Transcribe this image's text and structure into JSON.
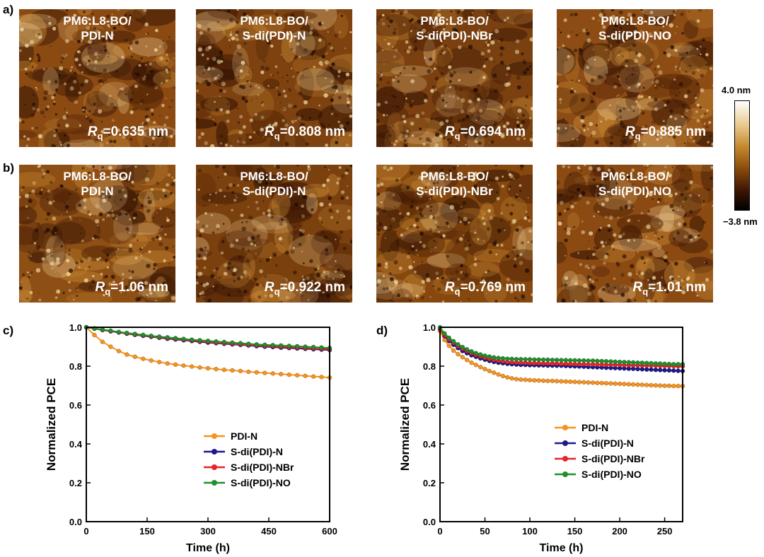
{
  "figure": {
    "row_labels": [
      "a)",
      "b)",
      "c)",
      "d)"
    ],
    "afm_row_a": [
      {
        "line1": "PM6:L8-BO/",
        "line2": "PDI-N",
        "rq_symbol": "R",
        "rq_sub": "q",
        "rq_value": "=0.635 nm",
        "tone": "#8a4a12"
      },
      {
        "line1": "PM6:L8-BO/",
        "line2": "S-di(PDI)-N",
        "rq_symbol": "R",
        "rq_sub": "q",
        "rq_value": "=0.808 nm",
        "tone": "#7d420f"
      },
      {
        "line1": "PM6:L8-BO/",
        "line2": "S-di(PDI)-NBr",
        "rq_symbol": "R",
        "rq_sub": "q",
        "rq_value": "=0.694 nm",
        "tone": "#7a4010"
      },
      {
        "line1": "PM6:L8-BO/",
        "line2": "S-di(PDI)-NO",
        "rq_symbol": "R",
        "rq_sub": "q",
        "rq_value": "=0.885 nm",
        "tone": "#8c4c14"
      }
    ],
    "afm_row_b": [
      {
        "line1": "PM6:L8-BO/",
        "line2": "PDI-N",
        "rq_symbol": "R",
        "rq_sub": "q",
        "rq_value": "=1.06 nm",
        "tone": "#8e4f14"
      },
      {
        "line1": "PM6:L8-BO/",
        "line2": "S-di(PDI)-N",
        "rq_symbol": "R",
        "rq_sub": "q",
        "rq_value": "=0.922 nm",
        "tone": "#7a400e"
      },
      {
        "line1": "PM6:L8-BO/",
        "line2": "S-di(PDI)-NBr",
        "rq_symbol": "R",
        "rq_sub": "q",
        "rq_value": "=0.769 nm",
        "tone": "#86480f"
      },
      {
        "line1": "PM6:L8-BO/",
        "line2": "S-di(PDI)-NO",
        "rq_symbol": "R",
        "rq_sub": "q",
        "rq_value": "=1.01 nm",
        "tone": "#8a4a12"
      }
    ],
    "colorbar": {
      "max_label": "4.0 nm",
      "min_label": "−3.8 nm"
    }
  },
  "chart_data": [
    {
      "id": "c",
      "type": "line",
      "xlabel": "Time (h)",
      "ylabel": "Normalized PCE",
      "xlim": [
        0,
        600
      ],
      "ylim": [
        0,
        1.0
      ],
      "xticks": [
        0,
        150,
        300,
        450,
        600
      ],
      "yticks": [
        0.0,
        0.2,
        0.4,
        0.6,
        0.8,
        1.0
      ],
      "x": [
        0,
        20,
        40,
        60,
        80,
        100,
        120,
        140,
        160,
        180,
        200,
        220,
        240,
        260,
        280,
        300,
        320,
        340,
        360,
        380,
        400,
        420,
        440,
        460,
        480,
        500,
        520,
        540,
        560,
        580,
        600
      ],
      "series": [
        {
          "name": "PDI-N",
          "color": "#f7931e",
          "values": [
            1.0,
            0.96,
            0.925,
            0.9,
            0.878,
            0.86,
            0.848,
            0.838,
            0.829,
            0.821,
            0.814,
            0.808,
            0.803,
            0.798,
            0.793,
            0.789,
            0.785,
            0.781,
            0.778,
            0.775,
            0.771,
            0.768,
            0.765,
            0.762,
            0.759,
            0.756,
            0.753,
            0.75,
            0.747,
            0.744,
            0.741
          ]
        },
        {
          "name": "S-di(PDI)-N",
          "color": "#1a1a8c",
          "values": [
            1.0,
            0.993,
            0.986,
            0.979,
            0.973,
            0.967,
            0.961,
            0.956,
            0.951,
            0.946,
            0.941,
            0.937,
            0.933,
            0.929,
            0.925,
            0.921,
            0.918,
            0.915,
            0.912,
            0.909,
            0.906,
            0.903,
            0.9,
            0.898,
            0.895,
            0.893,
            0.891,
            0.889,
            0.887,
            0.885,
            0.883
          ]
        },
        {
          "name": "S-di(PDI)-NBr",
          "color": "#e8242a",
          "values": [
            1.0,
            0.993,
            0.986,
            0.98,
            0.974,
            0.968,
            0.963,
            0.958,
            0.953,
            0.948,
            0.944,
            0.94,
            0.936,
            0.932,
            0.928,
            0.925,
            0.921,
            0.918,
            0.915,
            0.912,
            0.909,
            0.907,
            0.904,
            0.902,
            0.899,
            0.897,
            0.895,
            0.893,
            0.891,
            0.889,
            0.887
          ]
        },
        {
          "name": "S-di(PDI)-NO",
          "color": "#20902c",
          "values": [
            1.0,
            0.994,
            0.988,
            0.982,
            0.976,
            0.971,
            0.966,
            0.961,
            0.956,
            0.952,
            0.948,
            0.944,
            0.94,
            0.936,
            0.933,
            0.93,
            0.927,
            0.924,
            0.921,
            0.918,
            0.915,
            0.912,
            0.91,
            0.908,
            0.906,
            0.904,
            0.902,
            0.9,
            0.898,
            0.896,
            0.894
          ]
        }
      ]
    },
    {
      "id": "d",
      "type": "line",
      "xlabel": "Time (h)",
      "ylabel": "Normalized PCE",
      "xlim": [
        0,
        270
      ],
      "ylim": [
        0,
        1.0
      ],
      "xticks": [
        0,
        50,
        100,
        150,
        200,
        250
      ],
      "yticks": [
        0.0,
        0.2,
        0.4,
        0.6,
        0.8,
        1.0
      ],
      "x": [
        0,
        5,
        10,
        15,
        20,
        25,
        30,
        35,
        40,
        45,
        50,
        55,
        60,
        65,
        70,
        75,
        80,
        85,
        90,
        95,
        100,
        105,
        110,
        115,
        120,
        125,
        130,
        135,
        140,
        145,
        150,
        155,
        160,
        165,
        170,
        175,
        180,
        185,
        190,
        195,
        200,
        205,
        210,
        215,
        220,
        225,
        230,
        235,
        240,
        245,
        250,
        255,
        260,
        265,
        270
      ],
      "series": [
        {
          "name": "PDI-N",
          "color": "#f7931e",
          "values": [
            0.98,
            0.935,
            0.905,
            0.88,
            0.862,
            0.846,
            0.832,
            0.818,
            0.806,
            0.795,
            0.785,
            0.775,
            0.766,
            0.757,
            0.749,
            0.742,
            0.737,
            0.733,
            0.731,
            0.73,
            0.728,
            0.727,
            0.726,
            0.725,
            0.724,
            0.724,
            0.723,
            0.722,
            0.721,
            0.72,
            0.719,
            0.718,
            0.717,
            0.716,
            0.715,
            0.714,
            0.713,
            0.712,
            0.711,
            0.71,
            0.709,
            0.708,
            0.707,
            0.706,
            0.705,
            0.704,
            0.703,
            0.702,
            0.701,
            0.7,
            0.699,
            0.699,
            0.698,
            0.698,
            0.697
          ]
        },
        {
          "name": "S-di(PDI)-N",
          "color": "#1a1a8c",
          "values": [
            0.99,
            0.955,
            0.93,
            0.91,
            0.893,
            0.878,
            0.866,
            0.856,
            0.848,
            0.84,
            0.833,
            0.827,
            0.822,
            0.818,
            0.815,
            0.812,
            0.81,
            0.808,
            0.807,
            0.806,
            0.805,
            0.805,
            0.804,
            0.804,
            0.803,
            0.803,
            0.802,
            0.802,
            0.801,
            0.8,
            0.799,
            0.798,
            0.797,
            0.796,
            0.795,
            0.794,
            0.793,
            0.792,
            0.791,
            0.79,
            0.789,
            0.788,
            0.787,
            0.786,
            0.785,
            0.784,
            0.783,
            0.782,
            0.781,
            0.78,
            0.779,
            0.778,
            0.777,
            0.776,
            0.775
          ]
        },
        {
          "name": "S-di(PDI)-NBr",
          "color": "#e8242a",
          "values": [
            0.99,
            0.96,
            0.938,
            0.92,
            0.903,
            0.889,
            0.877,
            0.866,
            0.858,
            0.85,
            0.843,
            0.837,
            0.832,
            0.828,
            0.825,
            0.822,
            0.82,
            0.819,
            0.818,
            0.817,
            0.816,
            0.815,
            0.815,
            0.814,
            0.814,
            0.813,
            0.813,
            0.812,
            0.812,
            0.811,
            0.811,
            0.81,
            0.81,
            0.809,
            0.809,
            0.808,
            0.808,
            0.807,
            0.807,
            0.806,
            0.806,
            0.805,
            0.805,
            0.804,
            0.804,
            0.803,
            0.803,
            0.802,
            0.802,
            0.801,
            0.801,
            0.8,
            0.8,
            0.799,
            0.799
          ]
        },
        {
          "name": "S-di(PDI)-NO",
          "color": "#20902c",
          "values": [
            1.0,
            0.968,
            0.946,
            0.928,
            0.912,
            0.898,
            0.886,
            0.876,
            0.867,
            0.86,
            0.854,
            0.849,
            0.845,
            0.842,
            0.84,
            0.838,
            0.837,
            0.836,
            0.836,
            0.835,
            0.835,
            0.834,
            0.834,
            0.833,
            0.833,
            0.832,
            0.832,
            0.831,
            0.831,
            0.83,
            0.83,
            0.829,
            0.829,
            0.828,
            0.828,
            0.827,
            0.826,
            0.825,
            0.824,
            0.823,
            0.822,
            0.821,
            0.82,
            0.819,
            0.818,
            0.817,
            0.816,
            0.815,
            0.814,
            0.813,
            0.812,
            0.811,
            0.81,
            0.81,
            0.81
          ]
        }
      ]
    }
  ]
}
